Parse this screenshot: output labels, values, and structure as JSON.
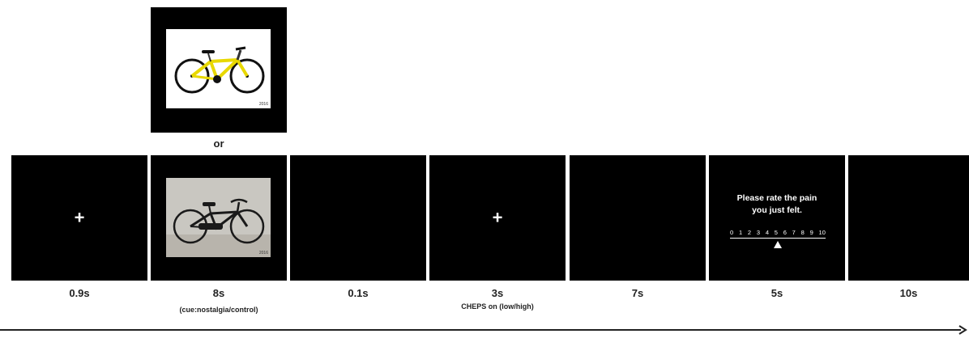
{
  "cue_alternative_label": "or",
  "fixation_symbol": "+",
  "image_tag": "2016",
  "rating": {
    "question_line1": "Please rate the pain",
    "question_line2": "you just felt.",
    "scale": [
      "0",
      "1",
      "2",
      "3",
      "4",
      "5",
      "6",
      "7",
      "8",
      "9",
      "10"
    ],
    "marker_value": 5
  },
  "timeline": [
    {
      "duration": "0.9s"
    },
    {
      "duration": "8s",
      "note": "(cue:nostalgia/control)"
    },
    {
      "duration": "0.1s"
    },
    {
      "duration": "3s",
      "note": "CHEPS on (low/high)"
    },
    {
      "duration": "7s"
    },
    {
      "duration": "5s"
    },
    {
      "duration": "10s"
    }
  ],
  "colors": {
    "screen": "#000000",
    "text": "#222222",
    "bike_modern": "#e8d800",
    "bike_vintage": "#1a1a1a"
  }
}
